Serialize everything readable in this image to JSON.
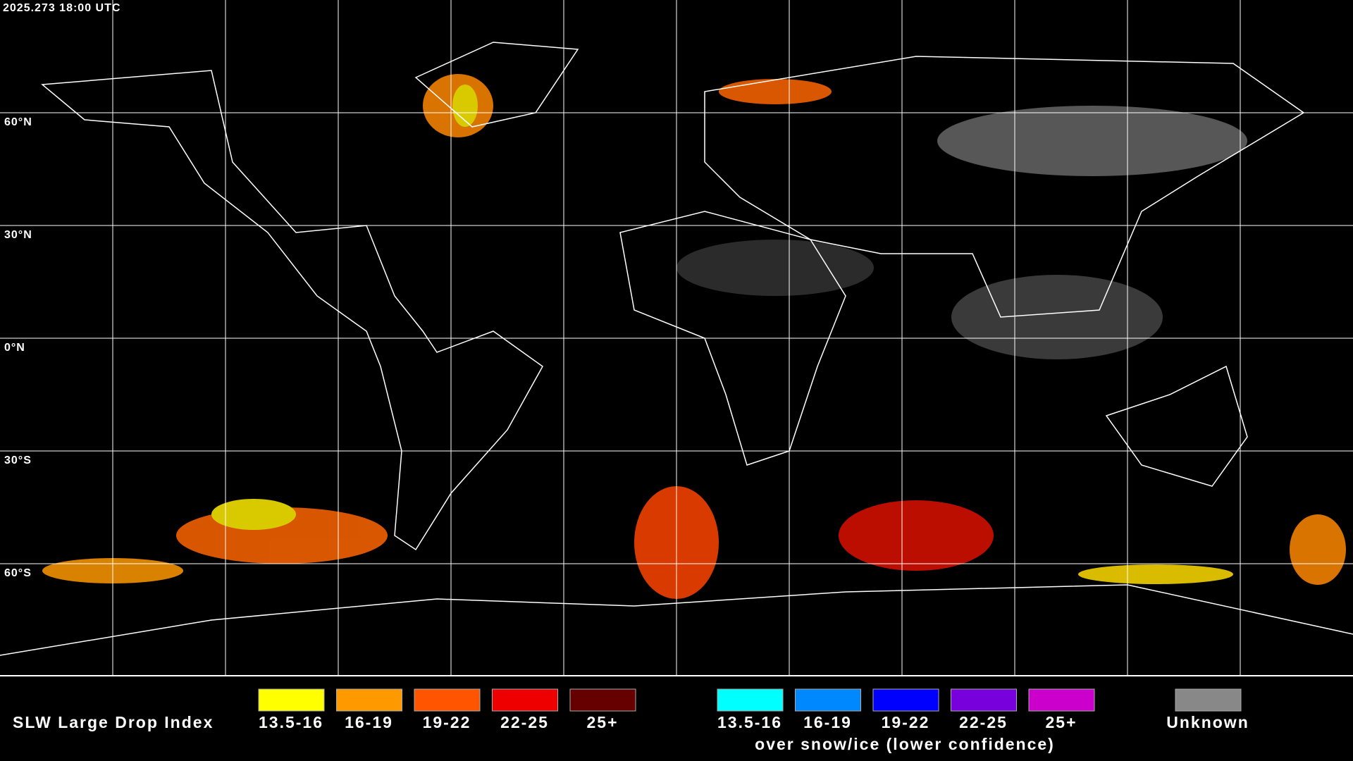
{
  "header": {
    "timestamp": "2025.273 18:00 UTC"
  },
  "grid": {
    "lat_labels": [
      "60°N",
      "30°N",
      "0°N",
      "30°S",
      "60°S"
    ]
  },
  "legend": {
    "title": "SLW Large Drop Index",
    "main": [
      {
        "label": "13.5-16",
        "color": "#ffff00"
      },
      {
        "label": "16-19",
        "color": "#ff9900"
      },
      {
        "label": "19-22",
        "color": "#ff5500"
      },
      {
        "label": "22-25",
        "color": "#ee0000"
      },
      {
        "label": "25+",
        "color": "#660000"
      }
    ],
    "snow": [
      {
        "label": "13.5-16",
        "color": "#00ffff"
      },
      {
        "label": "16-19",
        "color": "#0088ff"
      },
      {
        "label": "19-22",
        "color": "#0000ff"
      },
      {
        "label": "22-25",
        "color": "#7700dd"
      },
      {
        "label": "25+",
        "color": "#cc00cc"
      }
    ],
    "snow_caption": "over snow/ice (lower confidence)",
    "unknown": {
      "label": "Unknown",
      "color": "#888888"
    }
  }
}
